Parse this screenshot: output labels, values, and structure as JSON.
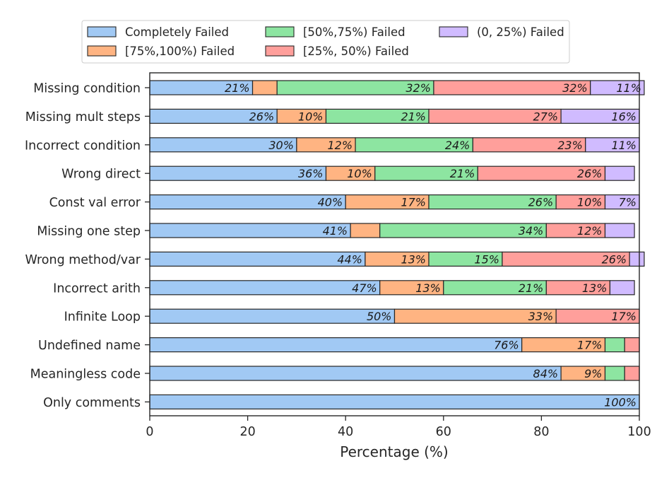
{
  "chart_data": {
    "type": "bar",
    "orientation": "horizontal",
    "stacked": true,
    "xlabel": "Percentage (%)",
    "ylabel": "",
    "xlim": [
      0,
      100
    ],
    "xticks": [
      "0",
      "20",
      "40",
      "60",
      "80",
      "100"
    ],
    "grid": false,
    "legend_position": "top",
    "categories": [
      "Missing condition",
      "Missing mult steps",
      "Incorrect condition",
      "Wrong direct",
      "Const val error",
      "Missing one step",
      "Wrong method/var",
      "Incorrect arith",
      "Infinite Loop",
      "Undefined name",
      "Meaningless code",
      "Only comments"
    ],
    "series": [
      {
        "name": "Completely Failed",
        "color": "#a1c9f4",
        "values": [
          21,
          26,
          30,
          36,
          40,
          41,
          44,
          47,
          50,
          76,
          84,
          100
        ],
        "labels": [
          "21%",
          "26%",
          "30%",
          "36%",
          "40%",
          "41%",
          "44%",
          "47%",
          "50%",
          "76%",
          "84%",
          "100%"
        ]
      },
      {
        "name": "[75%,100%) Failed",
        "color": "#ffb482",
        "values": [
          5,
          10,
          12,
          10,
          17,
          6,
          13,
          13,
          33,
          17,
          9,
          0
        ],
        "labels": [
          "",
          "10%",
          "12%",
          "10%",
          "17%",
          "",
          "13%",
          "13%",
          "33%",
          "17%",
          "9%",
          ""
        ]
      },
      {
        "name": "[50%,75%) Failed",
        "color": "#8de5a1",
        "values": [
          32,
          21,
          24,
          21,
          26,
          34,
          15,
          21,
          0,
          4,
          4,
          0
        ],
        "labels": [
          "32%",
          "21%",
          "24%",
          "21%",
          "26%",
          "34%",
          "15%",
          "21%",
          "",
          "",
          "",
          ""
        ]
      },
      {
        "name": "[25%, 50%) Failed",
        "color": "#ff9f9b",
        "values": [
          32,
          27,
          23,
          26,
          10,
          12,
          26,
          13,
          17,
          3,
          3,
          0
        ],
        "labels": [
          "32%",
          "27%",
          "23%",
          "26%",
          "10%",
          "12%",
          "26%",
          "13%",
          "17%",
          "",
          "",
          ""
        ]
      },
      {
        "name": "(0, 25%) Failed",
        "color": "#d0bbff",
        "values": [
          11,
          16,
          11,
          6,
          7,
          6,
          3,
          5,
          0,
          0,
          0,
          0
        ],
        "labels": [
          "11%",
          "16%",
          "11%",
          "",
          "7%",
          "",
          "",
          "",
          "",
          "",
          "",
          ""
        ]
      }
    ]
  }
}
